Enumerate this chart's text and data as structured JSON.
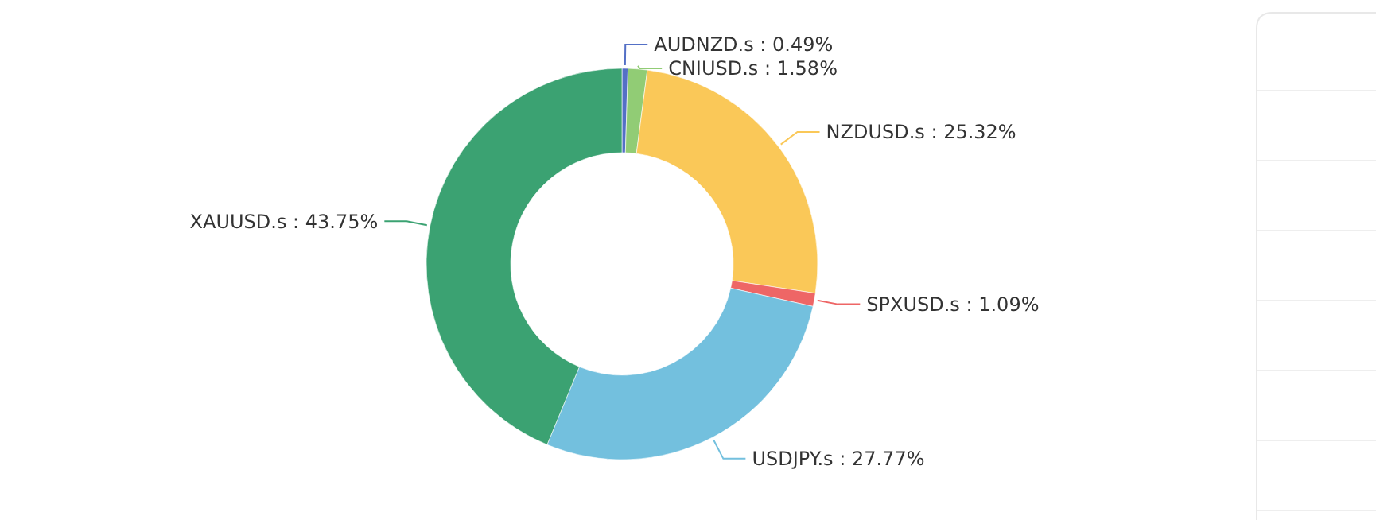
{
  "chart_data": {
    "type": "donut",
    "categories": [
      "AUDNZD.s",
      "CNIUSD.s",
      "NZDUSD.s",
      "SPXUSD.s",
      "USDJPY.s",
      "XAUUSD.s"
    ],
    "values": [
      0.49,
      1.58,
      25.32,
      1.09,
      27.77,
      43.75
    ],
    "value_labels": [
      "0.49%",
      "1.58%",
      "25.32%",
      "1.09%",
      "27.77%",
      "43.75%"
    ],
    "colors": [
      "#5470c6",
      "#91cc75",
      "#fac858",
      "#ee6666",
      "#73c0de",
      "#3ba272"
    ],
    "legend": false
  }
}
